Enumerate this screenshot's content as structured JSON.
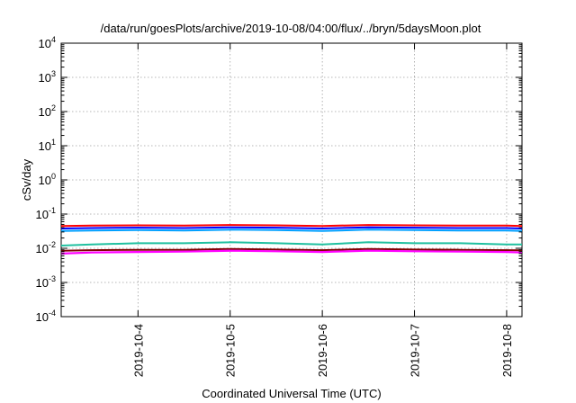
{
  "chart_data": {
    "type": "line",
    "title": "/data/run/goesPlots/archive/2019-10-08/04:00/flux/../bryn/5daysMoon.plot",
    "xlabel": "Coordinated Universal Time (UTC)",
    "ylabel": "cSv/day",
    "yscale": "log",
    "ylim": [
      0.0001,
      10000
    ],
    "xlim": [
      "2019-10-03 04:00",
      "2019-10-08 04:00"
    ],
    "grid": true,
    "y_ticks": [
      {
        "value": 0.0001,
        "base": "10",
        "exp": "-4"
      },
      {
        "value": 0.001,
        "base": "10",
        "exp": "-3"
      },
      {
        "value": 0.01,
        "base": "10",
        "exp": "-2"
      },
      {
        "value": 0.1,
        "base": "10",
        "exp": "-1"
      },
      {
        "value": 1,
        "base": "10",
        "exp": "0"
      },
      {
        "value": 10,
        "base": "10",
        "exp": "1"
      },
      {
        "value": 100,
        "base": "10",
        "exp": "2"
      },
      {
        "value": 1000,
        "base": "10",
        "exp": "3"
      },
      {
        "value": 10000,
        "base": "10",
        "exp": "4"
      }
    ],
    "x_ticks": [
      {
        "value": "2019-10-04",
        "label": "2019-10-4"
      },
      {
        "value": "2019-10-05",
        "label": "2019-10-5"
      },
      {
        "value": "2019-10-06",
        "label": "2019-10-6"
      },
      {
        "value": "2019-10-07",
        "label": "2019-10-7"
      },
      {
        "value": "2019-10-08",
        "label": "2019-10-8"
      }
    ],
    "series": [
      {
        "color": "#ff0000",
        "x": [
          "2019-10-03 04:00",
          "2019-10-03 12:00",
          "2019-10-04 00:00",
          "2019-10-04 12:00",
          "2019-10-05 00:00",
          "2019-10-05 12:00",
          "2019-10-06 00:00",
          "2019-10-06 12:00",
          "2019-10-07 00:00",
          "2019-10-07 12:00",
          "2019-10-08 00:00",
          "2019-10-08 04:00"
        ],
        "y": [
          0.045,
          0.046,
          0.047,
          0.046,
          0.048,
          0.047,
          0.045,
          0.048,
          0.047,
          0.046,
          0.046,
          0.045
        ]
      },
      {
        "color": "#0000ff",
        "x": [
          "2019-10-03 04:00",
          "2019-10-03 12:00",
          "2019-10-04 00:00",
          "2019-10-04 12:00",
          "2019-10-05 00:00",
          "2019-10-05 12:00",
          "2019-10-06 00:00",
          "2019-10-06 12:00",
          "2019-10-07 00:00",
          "2019-10-07 12:00",
          "2019-10-08 00:00",
          "2019-10-08 04:00"
        ],
        "y": [
          0.038,
          0.039,
          0.04,
          0.039,
          0.041,
          0.04,
          0.038,
          0.041,
          0.04,
          0.039,
          0.039,
          0.038
        ]
      },
      {
        "color": "#00a0ff",
        "x": [
          "2019-10-03 04:00",
          "2019-10-03 12:00",
          "2019-10-04 00:00",
          "2019-10-04 12:00",
          "2019-10-05 00:00",
          "2019-10-05 12:00",
          "2019-10-06 00:00",
          "2019-10-06 12:00",
          "2019-10-07 00:00",
          "2019-10-07 12:00",
          "2019-10-08 00:00",
          "2019-10-08 04:00"
        ],
        "y": [
          0.032,
          0.033,
          0.034,
          0.033,
          0.035,
          0.034,
          0.032,
          0.035,
          0.034,
          0.033,
          0.033,
          0.032
        ]
      },
      {
        "color": "#20c0a0",
        "x": [
          "2019-10-03 04:00",
          "2019-10-03 12:00",
          "2019-10-04 00:00",
          "2019-10-04 12:00",
          "2019-10-05 00:00",
          "2019-10-05 12:00",
          "2019-10-06 00:00",
          "2019-10-06 12:00",
          "2019-10-07 00:00",
          "2019-10-07 12:00",
          "2019-10-08 00:00",
          "2019-10-08 04:00"
        ],
        "y": [
          0.012,
          0.013,
          0.014,
          0.014,
          0.015,
          0.014,
          0.013,
          0.015,
          0.014,
          0.014,
          0.013,
          0.013
        ]
      },
      {
        "color": "#800000",
        "x": [
          "2019-10-03 04:00",
          "2019-10-03 12:00",
          "2019-10-04 00:00",
          "2019-10-04 12:00",
          "2019-10-05 00:00",
          "2019-10-05 12:00",
          "2019-10-06 00:00",
          "2019-10-06 12:00",
          "2019-10-07 00:00",
          "2019-10-07 12:00",
          "2019-10-08 00:00",
          "2019-10-08 04:00"
        ],
        "y": [
          0.0085,
          0.0088,
          0.009,
          0.009,
          0.0095,
          0.0092,
          0.0088,
          0.0095,
          0.0092,
          0.009,
          0.0088,
          0.0087
        ]
      },
      {
        "color": "#ff00ff",
        "x": [
          "2019-10-03 04:00",
          "2019-10-03 12:00",
          "2019-10-04 00:00",
          "2019-10-04 12:00",
          "2019-10-05 00:00",
          "2019-10-05 12:00",
          "2019-10-06 00:00",
          "2019-10-06 12:00",
          "2019-10-07 00:00",
          "2019-10-07 12:00",
          "2019-10-08 00:00",
          "2019-10-08 04:00"
        ],
        "y": [
          0.007,
          0.0075,
          0.0078,
          0.008,
          0.0085,
          0.0082,
          0.0078,
          0.0085,
          0.0082,
          0.008,
          0.0078,
          0.0075
        ]
      }
    ],
    "spikes_note": ""
  }
}
